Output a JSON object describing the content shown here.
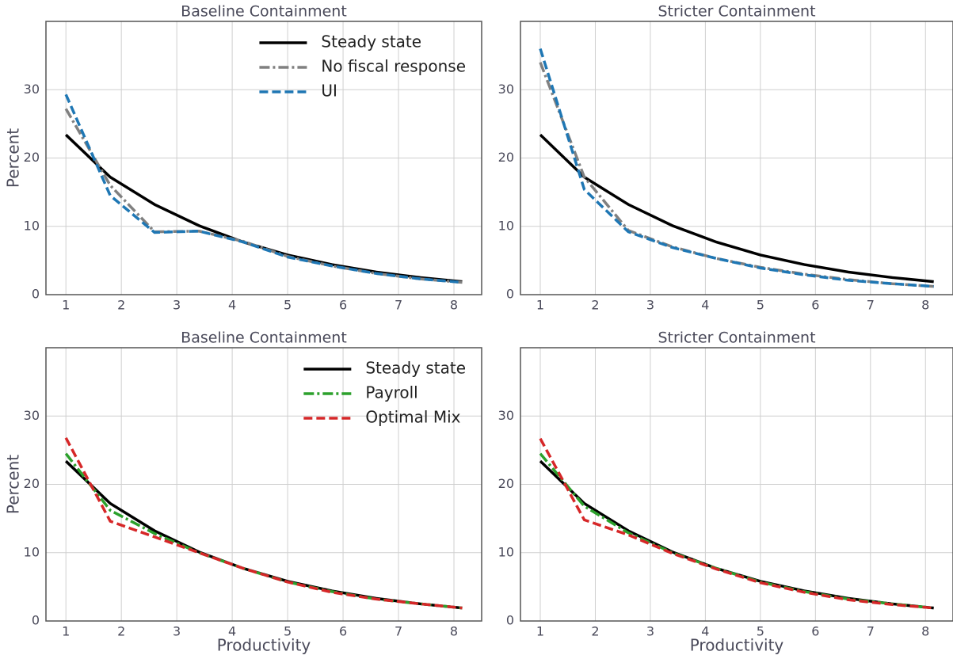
{
  "chart_data": [
    {
      "type": "line",
      "title": "Baseline Containment",
      "ylabel": "Percent",
      "x": [
        1.0,
        1.8,
        2.6,
        3.4,
        4.2,
        5.0,
        5.8,
        6.6,
        7.4,
        8.15
      ],
      "xlim": [
        0.64,
        8.5
      ],
      "ylim": [
        0,
        40
      ],
      "xticks": [
        1,
        2,
        3,
        4,
        5,
        6,
        7,
        8
      ],
      "yticks": [
        0,
        10,
        20,
        30
      ],
      "grid": true,
      "legend": "upper right",
      "series": [
        {
          "name": "Steady state",
          "color": "#000000",
          "linestyle": "solid",
          "values": [
            23.4,
            17.2,
            13.2,
            10.1,
            7.7,
            5.8,
            4.4,
            3.3,
            2.5,
            1.9
          ]
        },
        {
          "name": "No fiscal response",
          "color": "#808080",
          "linestyle": "dashdot",
          "values": [
            27.2,
            16.0,
            9.2,
            9.3,
            7.8,
            5.6,
            4.2,
            3.1,
            2.3,
            1.8
          ]
        },
        {
          "name": "UI",
          "color": "#1f77b4",
          "linestyle": "dashed",
          "values": [
            29.3,
            14.5,
            9.1,
            9.3,
            7.7,
            5.5,
            4.2,
            3.1,
            2.3,
            1.8
          ]
        }
      ]
    },
    {
      "type": "line",
      "title": "Stricter Containment",
      "x": [
        1.0,
        1.8,
        2.6,
        3.4,
        4.2,
        5.0,
        5.8,
        6.6,
        7.4,
        8.15
      ],
      "xlim": [
        0.64,
        8.5
      ],
      "ylim": [
        0,
        40
      ],
      "xticks": [
        1,
        2,
        3,
        4,
        5,
        6,
        7,
        8
      ],
      "yticks": [
        0,
        10,
        20,
        30
      ],
      "grid": true,
      "series": [
        {
          "color": "#000000",
          "linestyle": "solid",
          "values": [
            23.4,
            17.2,
            13.2,
            10.1,
            7.7,
            5.8,
            4.4,
            3.3,
            2.5,
            1.9
          ]
        },
        {
          "color": "#808080",
          "linestyle": "dashdot",
          "values": [
            34.0,
            17.2,
            9.4,
            7.0,
            5.3,
            4.0,
            3.0,
            2.2,
            1.6,
            1.2
          ]
        },
        {
          "color": "#1f77b4",
          "linestyle": "dashed",
          "values": [
            36.0,
            15.4,
            9.2,
            6.9,
            5.3,
            3.9,
            2.9,
            2.1,
            1.6,
            1.2
          ]
        }
      ]
    },
    {
      "type": "line",
      "title": "Baseline Containment",
      "ylabel": "Percent",
      "xlabel": "Productivity",
      "x": [
        1.0,
        1.8,
        2.6,
        3.4,
        4.2,
        5.0,
        5.8,
        6.6,
        7.4,
        8.15
      ],
      "xlim": [
        0.64,
        8.5
      ],
      "ylim": [
        0,
        40
      ],
      "xticks": [
        1,
        2,
        3,
        4,
        5,
        6,
        7,
        8
      ],
      "yticks": [
        0,
        10,
        20,
        30
      ],
      "grid": true,
      "legend": "upper right",
      "series": [
        {
          "name": "Steady state",
          "color": "#000000",
          "linestyle": "solid",
          "values": [
            23.4,
            17.2,
            13.2,
            10.1,
            7.7,
            5.8,
            4.4,
            3.3,
            2.5,
            1.9
          ]
        },
        {
          "name": "Payroll",
          "color": "#2ca02c",
          "linestyle": "dashdot",
          "values": [
            24.5,
            16.2,
            12.8,
            10.0,
            7.7,
            5.7,
            4.3,
            3.2,
            2.5,
            1.9
          ]
        },
        {
          "name": "Optimal Mix",
          "color": "#d62728",
          "linestyle": "dashed",
          "values": [
            26.8,
            14.6,
            12.3,
            10.0,
            7.7,
            5.7,
            4.2,
            3.2,
            2.5,
            1.9
          ]
        }
      ]
    },
    {
      "type": "line",
      "title": "Stricter Containment",
      "xlabel": "Productivity",
      "x": [
        1.0,
        1.8,
        2.6,
        3.4,
        4.2,
        5.0,
        5.8,
        6.6,
        7.4,
        8.15
      ],
      "xlim": [
        0.64,
        8.5
      ],
      "ylim": [
        0,
        40
      ],
      "xticks": [
        1,
        2,
        3,
        4,
        5,
        6,
        7,
        8
      ],
      "yticks": [
        0,
        10,
        20,
        30
      ],
      "grid": true,
      "series": [
        {
          "color": "#000000",
          "linestyle": "solid",
          "values": [
            23.4,
            17.2,
            13.2,
            10.1,
            7.7,
            5.8,
            4.4,
            3.3,
            2.5,
            1.9
          ]
        },
        {
          "color": "#2ca02c",
          "linestyle": "dashdot",
          "values": [
            24.5,
            16.8,
            12.9,
            10.0,
            7.7,
            5.7,
            4.3,
            3.2,
            2.5,
            1.9
          ]
        },
        {
          "color": "#d62728",
          "linestyle": "dashed",
          "values": [
            26.7,
            14.8,
            12.6,
            9.9,
            7.6,
            5.6,
            4.2,
            3.1,
            2.4,
            1.9
          ]
        }
      ]
    }
  ]
}
